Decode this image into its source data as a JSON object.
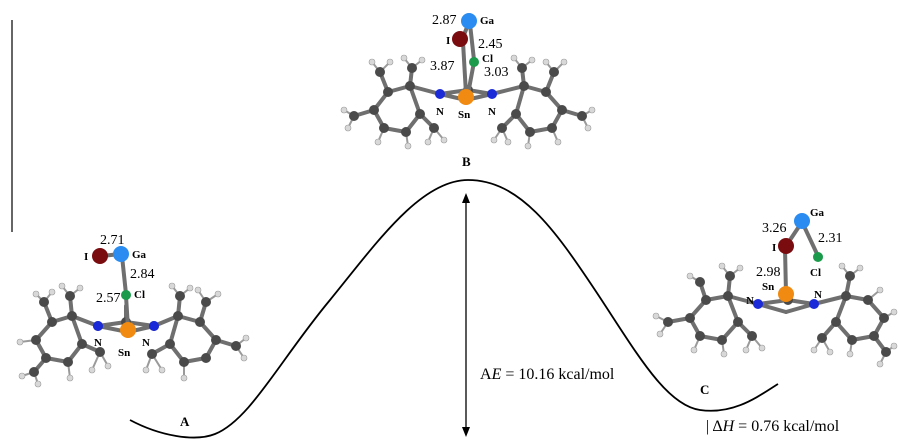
{
  "states": {
    "A": {
      "label": "A",
      "distances": {
        "i_ga": "2.71",
        "ga_cl": "2.84",
        "cl_sn": "2.57"
      },
      "atoms": {
        "i": "I",
        "ga": "Ga",
        "cl": "Cl",
        "sn": "Sn",
        "n_left": "N",
        "n_right": "N"
      }
    },
    "B": {
      "label": "B",
      "distances": {
        "i_ga": "2.87",
        "ga_cl": "2.45",
        "i_sn": "3.87",
        "cl_sn": "3.03"
      },
      "atoms": {
        "i": "I",
        "ga": "Ga",
        "cl": "Cl",
        "sn": "Sn",
        "n_left": "N",
        "n_right": "N"
      }
    },
    "C": {
      "label": "C",
      "distances": {
        "i_ga": "3.26",
        "ga_cl": "2.31",
        "i_sn": "2.98"
      },
      "atoms": {
        "i": "I",
        "ga": "Ga",
        "cl": "Cl",
        "sn": "Sn",
        "n_left": "N",
        "n_right": "N"
      }
    }
  },
  "energies": {
    "activation_prefix": "A",
    "activation_symbol": "E",
    "activation_value": " = 10.16 kcal/mol",
    "enthalpy_prefix": "| Δ",
    "enthalpy_symbol": "H",
    "enthalpy_value": " = 0.76 kcal/mol"
  },
  "colors": {
    "gallium": "#2a8cf0",
    "iodine": "#7a0c10",
    "chlorine": "#1a9a4a",
    "tin": "#f08a10",
    "nitrogen": "#1a2ad8",
    "carbon": "#4a4a4a",
    "hydrogen": "#d8d8d8",
    "bond": "#6f6f6f"
  }
}
